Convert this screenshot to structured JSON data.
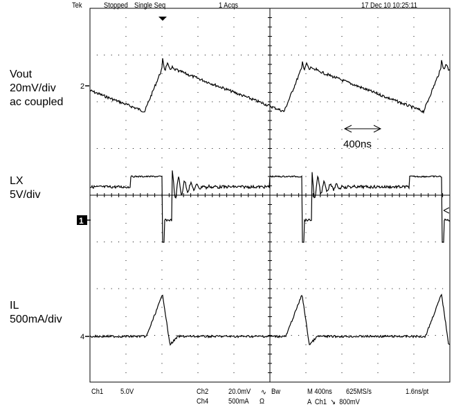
{
  "header": {
    "brand": "Tek",
    "status": "Stopped",
    "mode": "Single Seq",
    "acqs": "1 Acqs",
    "datetime": "17 Dec 10 10:25:11"
  },
  "channel_labels": [
    {
      "line1": "Vout",
      "line2": "20mV/div",
      "line3": "ac coupled"
    },
    {
      "line1": "LX",
      "line2": "5V/div"
    },
    {
      "line1": "IL",
      "line2": "500mA/div"
    }
  ],
  "markers": {
    "ch2": "2",
    "ch1": "1",
    "ch4": "4"
  },
  "annotation": {
    "text": "400ns"
  },
  "footer": {
    "ch1": "Ch1",
    "ch1_scale": "5.0V",
    "ch2": "Ch2",
    "ch2_scale": "20.0mV",
    "ch2_coupling": "∿",
    "bw": "Bw",
    "ch4": "Ch4",
    "ch4_scale": "500mA",
    "ch4_coupling": "Ω",
    "timebase": "M 400ns",
    "sample_rate": "625MS/s",
    "resolution": "1.6ns/pt",
    "trigger": "A  Ch1  ↘  800mV"
  },
  "chart_data": {
    "type": "line",
    "title": "",
    "xlabel": "",
    "ylabel": "",
    "divisions": {
      "x": 10,
      "y": 8
    },
    "grid": true,
    "series": [
      {
        "channel": "Ch2",
        "color": "#000000",
        "unit_per_div": "20mV",
        "period_ns": 1550,
        "ramp_ns": 1350,
        "spike_ns": 200,
        "peak_to_peak_div": 1.0
      },
      {
        "channel": "Ch1",
        "color": "#000000",
        "unit_per_div": "5V",
        "period_ns": 1550,
        "pulse_ns": 360,
        "high_div": 0.3,
        "low_div": -0.9
      },
      {
        "channel": "Ch4",
        "color": "#000000",
        "unit_per_div": "500mA",
        "period_ns": 1550,
        "peak_div": 0.9,
        "rise_ns": 180,
        "fall_ns": 80
      }
    ]
  }
}
